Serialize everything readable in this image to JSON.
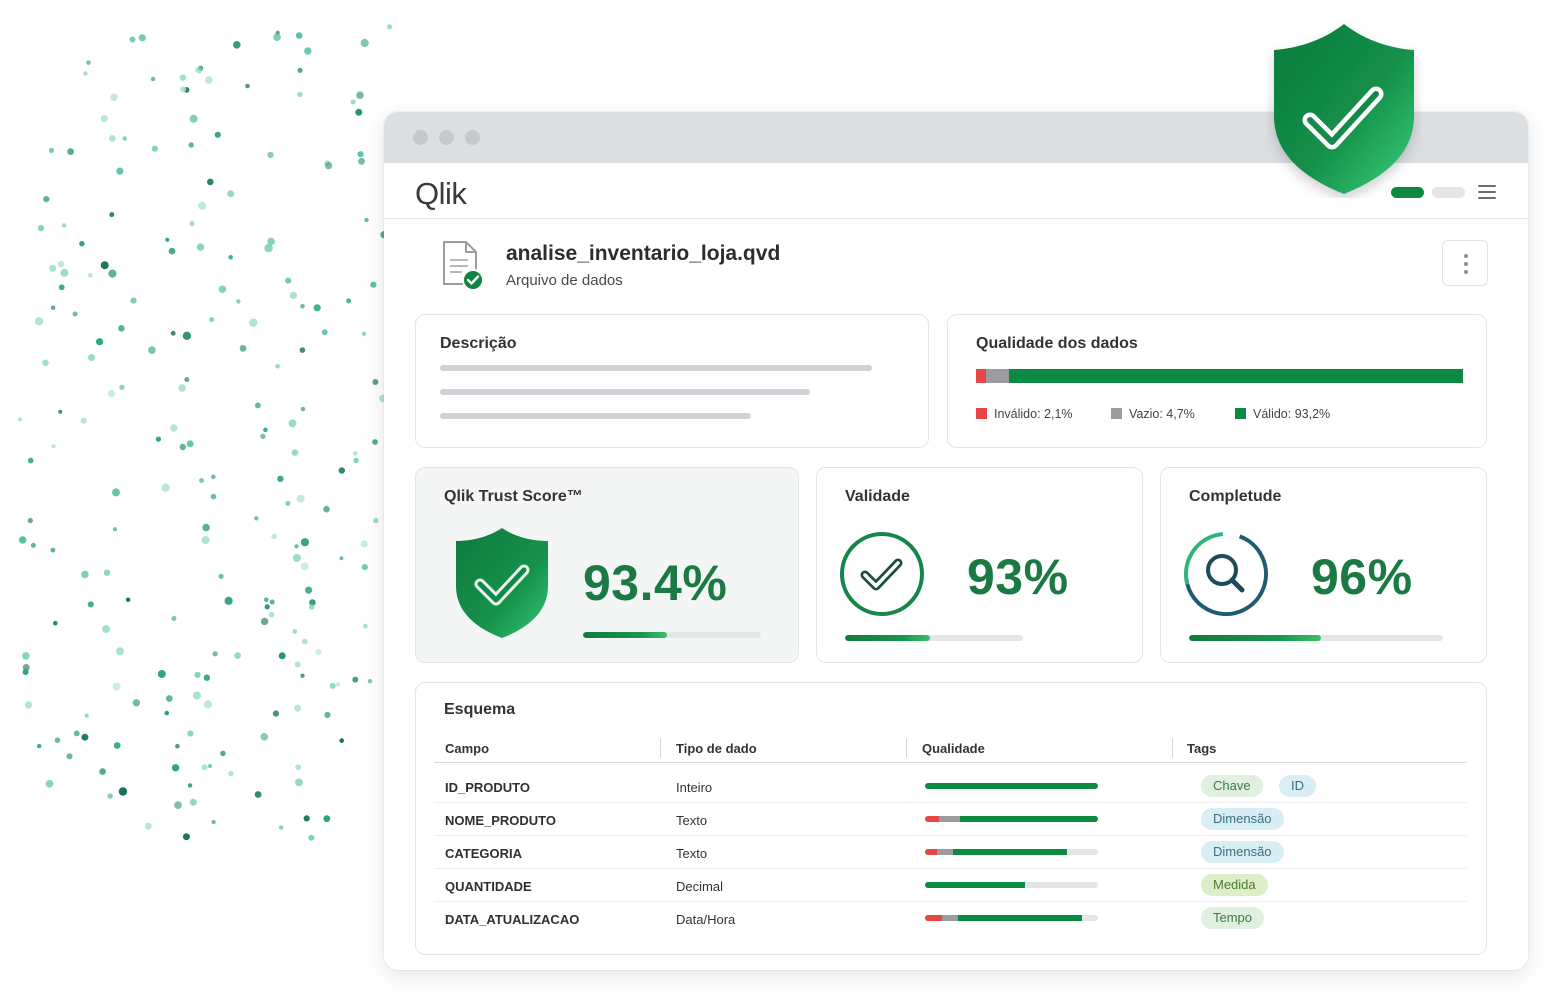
{
  "colors": {
    "brand_green": "#009845",
    "dark_green": "#0c8a43",
    "invalid": "#e84545",
    "empty": "#9a9ca0",
    "valid": "#0c8a43"
  },
  "app": {
    "logo_text": "Qlik"
  },
  "file": {
    "icon": "file-check-icon",
    "name": "analise_inventario_loja.qvd",
    "subtitle": "Arquivo de dados"
  },
  "description": {
    "title": "Descrição"
  },
  "quality": {
    "title": "Qualidade dos dados",
    "segments": [
      {
        "key": "invalid",
        "label": "Inválido: 2,1%",
        "value": 2.1,
        "color": "#e84545"
      },
      {
        "key": "empty",
        "label": "Vazio: 4,7%",
        "value": 4.7,
        "color": "#9a9ca0"
      },
      {
        "key": "valid",
        "label": "Válido: 93,2%",
        "value": 93.2,
        "color": "#0c8a43"
      }
    ]
  },
  "trust": {
    "title": "Qlik Trust Score™",
    "value": "93.4%",
    "progress": 0.47,
    "icon": "shield-check-icon"
  },
  "validity": {
    "title": "Validade",
    "value": "93%",
    "progress": 0.48,
    "icon": "circle-check-icon"
  },
  "completeness": {
    "title": "Completude",
    "value": "96%",
    "progress": 0.52,
    "icon": "magnifier-icon"
  },
  "schema": {
    "title": "Esquema",
    "columns": [
      "Campo",
      "Tipo de dado",
      "Qualidade",
      "Tags"
    ],
    "rows": [
      {
        "field": "ID_PRODUTO",
        "type": "Inteiro",
        "quality": {
          "invalid": 0,
          "empty": 0,
          "valid": 100
        },
        "tags": [
          {
            "label": "Chave",
            "style": "green"
          },
          {
            "label": "ID",
            "style": "blue"
          }
        ]
      },
      {
        "field": "NOME_PRODUTO",
        "type": "Texto",
        "quality": {
          "invalid": 8,
          "empty": 12,
          "valid": 80
        },
        "tags": [
          {
            "label": "Dimensão",
            "style": "blue"
          }
        ]
      },
      {
        "field": "CATEGORIA",
        "type": "Texto",
        "quality": {
          "invalid": 7,
          "empty": 9,
          "valid": 66
        },
        "tags": [
          {
            "label": "Dimensão",
            "style": "blue"
          }
        ]
      },
      {
        "field": "QUANTIDADE",
        "type": "Decimal",
        "quality": {
          "invalid": 0,
          "empty": 0,
          "valid": 58
        },
        "tags": [
          {
            "label": "Medida",
            "style": "lime"
          }
        ]
      },
      {
        "field": "DATA_ATUALIZACAO",
        "type": "Data/Hora",
        "quality": {
          "invalid": 10,
          "empty": 9,
          "valid": 72
        },
        "tags": [
          {
            "label": "Tempo",
            "style": "green"
          }
        ]
      }
    ]
  }
}
